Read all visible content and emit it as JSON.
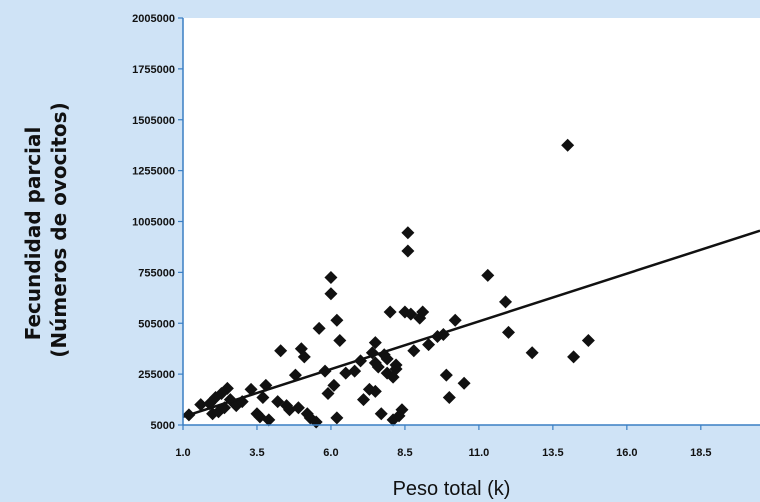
{
  "chart_data": {
    "type": "scatter",
    "title": "",
    "xlabel": "Peso total (k)",
    "ylabel_line1": "Fecundidad parcial",
    "ylabel_line2": "(Números de ovocitos)",
    "xlim": [
      1.0,
      20.5
    ],
    "ylim": [
      5000,
      2005000
    ],
    "x_ticks": [
      1.0,
      3.5,
      6.0,
      8.5,
      11.0,
      13.5,
      16.0,
      18.5
    ],
    "x_tick_labels": [
      "1.0",
      "3.5",
      "6.0",
      "8.5",
      "11.0",
      "13.5",
      "16.0",
      "18.5"
    ],
    "y_ticks": [
      5000,
      255000,
      505000,
      755000,
      1005000,
      1255000,
      1505000,
      1755000,
      2005000
    ],
    "y_tick_labels": [
      "5000",
      "255000",
      "505000",
      "755000",
      "1005000",
      "1255000",
      "1505000",
      "1755000",
      "2005000"
    ],
    "grid": false,
    "legend": "none",
    "colors": {
      "background": "#cfe3f6",
      "plot_area": "#ffffff",
      "points": "#111111",
      "trend_line": "#111111",
      "axis": "#3a7fc4"
    },
    "trend_line": {
      "x": [
        1.0,
        20.5
      ],
      "y": [
        45000,
        960000
      ]
    },
    "points": [
      [
        1.2,
        55000
      ],
      [
        1.6,
        105000
      ],
      [
        1.9,
        110000
      ],
      [
        2.0,
        60000
      ],
      [
        2.1,
        140000
      ],
      [
        2.2,
        70000
      ],
      [
        2.3,
        160000
      ],
      [
        2.4,
        90000
      ],
      [
        2.5,
        185000
      ],
      [
        2.6,
        130000
      ],
      [
        2.8,
        100000
      ],
      [
        3.0,
        120000
      ],
      [
        3.3,
        180000
      ],
      [
        3.5,
        60000
      ],
      [
        3.6,
        45000
      ],
      [
        3.7,
        140000
      ],
      [
        3.8,
        200000
      ],
      [
        3.9,
        30000
      ],
      [
        4.2,
        120000
      ],
      [
        4.3,
        370000
      ],
      [
        4.5,
        100000
      ],
      [
        4.6,
        80000
      ],
      [
        4.8,
        250000
      ],
      [
        4.9,
        90000
      ],
      [
        5.0,
        380000
      ],
      [
        5.1,
        340000
      ],
      [
        5.2,
        60000
      ],
      [
        5.3,
        40000
      ],
      [
        5.5,
        20000
      ],
      [
        5.6,
        480000
      ],
      [
        5.8,
        270000
      ],
      [
        5.9,
        160000
      ],
      [
        6.0,
        650000
      ],
      [
        6.1,
        200000
      ],
      [
        6.2,
        40000
      ],
      [
        6.0,
        730000
      ],
      [
        6.2,
        520000
      ],
      [
        6.3,
        420000
      ],
      [
        6.5,
        260000
      ],
      [
        6.8,
        270000
      ],
      [
        7.0,
        320000
      ],
      [
        7.1,
        130000
      ],
      [
        7.3,
        180000
      ],
      [
        7.4,
        360000
      ],
      [
        7.5,
        410000
      ],
      [
        7.5,
        310000
      ],
      [
        7.5,
        170000
      ],
      [
        7.6,
        290000
      ],
      [
        7.7,
        60000
      ],
      [
        7.8,
        350000
      ],
      [
        7.9,
        330000
      ],
      [
        7.9,
        260000
      ],
      [
        8.0,
        560000
      ],
      [
        8.1,
        240000
      ],
      [
        8.2,
        280000
      ],
      [
        8.1,
        30000
      ],
      [
        8.2,
        300000
      ],
      [
        8.3,
        50000
      ],
      [
        8.4,
        80000
      ],
      [
        8.5,
        560000
      ],
      [
        8.6,
        950000
      ],
      [
        8.6,
        860000
      ],
      [
        8.7,
        550000
      ],
      [
        8.8,
        370000
      ],
      [
        9.0,
        530000
      ],
      [
        9.1,
        560000
      ],
      [
        9.3,
        400000
      ],
      [
        9.6,
        440000
      ],
      [
        9.8,
        450000
      ],
      [
        9.9,
        250000
      ],
      [
        10.0,
        140000
      ],
      [
        10.2,
        520000
      ],
      [
        10.5,
        210000
      ],
      [
        11.3,
        740000
      ],
      [
        11.9,
        610000
      ],
      [
        12.0,
        460000
      ],
      [
        12.8,
        360000
      ],
      [
        14.0,
        1380000
      ],
      [
        14.2,
        340000
      ],
      [
        14.7,
        420000
      ]
    ]
  }
}
